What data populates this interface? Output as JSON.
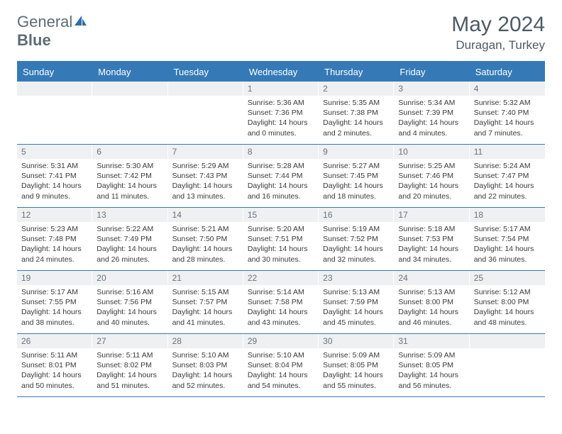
{
  "logo": {
    "part1": "General",
    "part2": "Blue"
  },
  "title": "May 2024",
  "location": "Duragan, Turkey",
  "colors": {
    "accent": "#357ab7",
    "headerText": "#ffffff",
    "dayBg": "#eef0f2",
    "text": "#3a3a3a",
    "muted": "#5f6b74"
  },
  "dayNames": [
    "Sunday",
    "Monday",
    "Tuesday",
    "Wednesday",
    "Thursday",
    "Friday",
    "Saturday"
  ],
  "weeks": [
    [
      null,
      null,
      null,
      {
        "n": "1",
        "sr": "5:36 AM",
        "ss": "7:36 PM",
        "dl": "14 hours and 0 minutes."
      },
      {
        "n": "2",
        "sr": "5:35 AM",
        "ss": "7:38 PM",
        "dl": "14 hours and 2 minutes."
      },
      {
        "n": "3",
        "sr": "5:34 AM",
        "ss": "7:39 PM",
        "dl": "14 hours and 4 minutes."
      },
      {
        "n": "4",
        "sr": "5:32 AM",
        "ss": "7:40 PM",
        "dl": "14 hours and 7 minutes."
      }
    ],
    [
      {
        "n": "5",
        "sr": "5:31 AM",
        "ss": "7:41 PM",
        "dl": "14 hours and 9 minutes."
      },
      {
        "n": "6",
        "sr": "5:30 AM",
        "ss": "7:42 PM",
        "dl": "14 hours and 11 minutes."
      },
      {
        "n": "7",
        "sr": "5:29 AM",
        "ss": "7:43 PM",
        "dl": "14 hours and 13 minutes."
      },
      {
        "n": "8",
        "sr": "5:28 AM",
        "ss": "7:44 PM",
        "dl": "14 hours and 16 minutes."
      },
      {
        "n": "9",
        "sr": "5:27 AM",
        "ss": "7:45 PM",
        "dl": "14 hours and 18 minutes."
      },
      {
        "n": "10",
        "sr": "5:25 AM",
        "ss": "7:46 PM",
        "dl": "14 hours and 20 minutes."
      },
      {
        "n": "11",
        "sr": "5:24 AM",
        "ss": "7:47 PM",
        "dl": "14 hours and 22 minutes."
      }
    ],
    [
      {
        "n": "12",
        "sr": "5:23 AM",
        "ss": "7:48 PM",
        "dl": "14 hours and 24 minutes."
      },
      {
        "n": "13",
        "sr": "5:22 AM",
        "ss": "7:49 PM",
        "dl": "14 hours and 26 minutes."
      },
      {
        "n": "14",
        "sr": "5:21 AM",
        "ss": "7:50 PM",
        "dl": "14 hours and 28 minutes."
      },
      {
        "n": "15",
        "sr": "5:20 AM",
        "ss": "7:51 PM",
        "dl": "14 hours and 30 minutes."
      },
      {
        "n": "16",
        "sr": "5:19 AM",
        "ss": "7:52 PM",
        "dl": "14 hours and 32 minutes."
      },
      {
        "n": "17",
        "sr": "5:18 AM",
        "ss": "7:53 PM",
        "dl": "14 hours and 34 minutes."
      },
      {
        "n": "18",
        "sr": "5:17 AM",
        "ss": "7:54 PM",
        "dl": "14 hours and 36 minutes."
      }
    ],
    [
      {
        "n": "19",
        "sr": "5:17 AM",
        "ss": "7:55 PM",
        "dl": "14 hours and 38 minutes."
      },
      {
        "n": "20",
        "sr": "5:16 AM",
        "ss": "7:56 PM",
        "dl": "14 hours and 40 minutes."
      },
      {
        "n": "21",
        "sr": "5:15 AM",
        "ss": "7:57 PM",
        "dl": "14 hours and 41 minutes."
      },
      {
        "n": "22",
        "sr": "5:14 AM",
        "ss": "7:58 PM",
        "dl": "14 hours and 43 minutes."
      },
      {
        "n": "23",
        "sr": "5:13 AM",
        "ss": "7:59 PM",
        "dl": "14 hours and 45 minutes."
      },
      {
        "n": "24",
        "sr": "5:13 AM",
        "ss": "8:00 PM",
        "dl": "14 hours and 46 minutes."
      },
      {
        "n": "25",
        "sr": "5:12 AM",
        "ss": "8:00 PM",
        "dl": "14 hours and 48 minutes."
      }
    ],
    [
      {
        "n": "26",
        "sr": "5:11 AM",
        "ss": "8:01 PM",
        "dl": "14 hours and 50 minutes."
      },
      {
        "n": "27",
        "sr": "5:11 AM",
        "ss": "8:02 PM",
        "dl": "14 hours and 51 minutes."
      },
      {
        "n": "28",
        "sr": "5:10 AM",
        "ss": "8:03 PM",
        "dl": "14 hours and 52 minutes."
      },
      {
        "n": "29",
        "sr": "5:10 AM",
        "ss": "8:04 PM",
        "dl": "14 hours and 54 minutes."
      },
      {
        "n": "30",
        "sr": "5:09 AM",
        "ss": "8:05 PM",
        "dl": "14 hours and 55 minutes."
      },
      {
        "n": "31",
        "sr": "5:09 AM",
        "ss": "8:05 PM",
        "dl": "14 hours and 56 minutes."
      },
      null
    ]
  ],
  "labels": {
    "sunrise": "Sunrise:",
    "sunset": "Sunset:",
    "daylight": "Daylight:"
  }
}
